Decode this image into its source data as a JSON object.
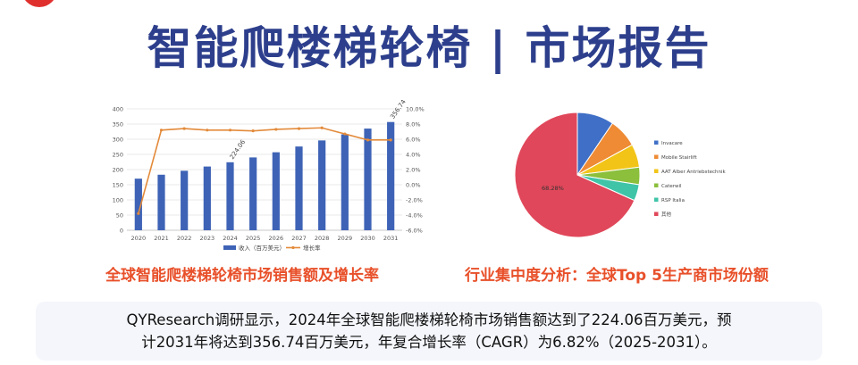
{
  "title": "智能爬楼梯轮椅 | 市场报告",
  "captions": {
    "left": "全球智能爬楼梯轮椅市场销售额及增长率",
    "right": "行业集中度分析：全球Top 5生产商市场份额"
  },
  "summary": {
    "line1": "QYResearch调研显示，2024年全球智能爬楼梯轮椅市场销售额达到了224.06百万美元，预",
    "line2": "计2031年将达到356.74百万美元，年复合增长率（CAGR）为6.82%（2025-2031）。"
  },
  "colors": {
    "bar": "#3e63b6",
    "line": "#e38a3a",
    "title": "#2d3f8c",
    "caption": "#e8502a"
  },
  "chart_data": [
    {
      "type": "bar",
      "categories": [
        "2020",
        "2021",
        "2022",
        "2023",
        "2024",
        "2025",
        "2026",
        "2027",
        "2028",
        "2029",
        "2030",
        "2031"
      ],
      "series": [
        {
          "name": "收入（百万美元）",
          "axis": "left",
          "type": "bar",
          "values": [
            170,
            183,
            196,
            210,
            224.06,
            240,
            257,
            276,
            296,
            316,
            335,
            356.74
          ]
        },
        {
          "name": "增长率",
          "axis": "right",
          "type": "line",
          "values": [
            -3.8,
            7.2,
            7.4,
            7.2,
            7.2,
            7.1,
            7.3,
            7.4,
            7.5,
            6.7,
            5.9,
            5.9
          ]
        }
      ],
      "data_labels": [
        {
          "category": "2024",
          "text": "224.06"
        },
        {
          "category": "2031",
          "text": "356.74"
        }
      ],
      "ylim_left": [
        0,
        400
      ],
      "yticks_left": [
        "0",
        "50",
        "100",
        "150",
        "200",
        "250",
        "300",
        "350",
        "400"
      ],
      "ylim_right": [
        -6,
        10
      ],
      "yticks_right": [
        "-6.0%",
        "-4.0%",
        "-2.0%",
        "0.0%",
        "2.0%",
        "4.0%",
        "6.0%",
        "8.0%",
        "10.0%"
      ],
      "grid": true,
      "legend": "bottom"
    },
    {
      "type": "pie",
      "labels": [
        "Invacare",
        "Mobile Stairlift",
        "AAT Alber Antriebstechnik",
        "Caterwil",
        "RSP Italia",
        "其他"
      ],
      "values": [
        9.5,
        7.5,
        6.0,
        4.5,
        4.2,
        68.28
      ],
      "colors": [
        "#3f6fc6",
        "#ee8b34",
        "#f2c418",
        "#8bbf3c",
        "#3fc4a8",
        "#e0475a"
      ],
      "data_labels": [
        {
          "label": "其他",
          "text": "68.28%"
        }
      ],
      "legend": "right"
    }
  ]
}
